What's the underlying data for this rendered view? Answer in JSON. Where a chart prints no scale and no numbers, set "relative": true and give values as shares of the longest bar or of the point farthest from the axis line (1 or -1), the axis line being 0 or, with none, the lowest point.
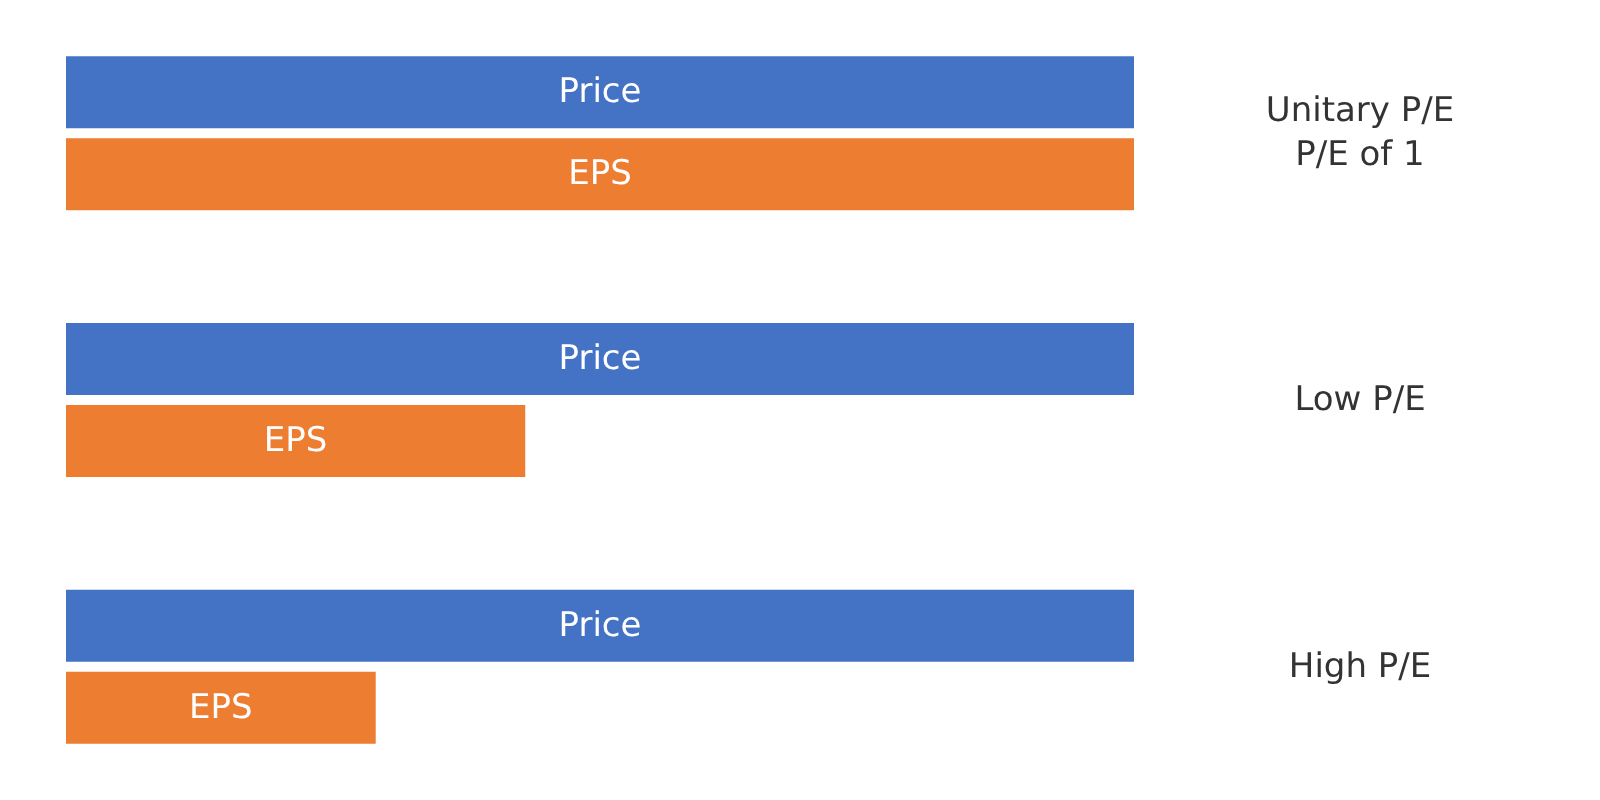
{
  "chart_data": {
    "type": "bar",
    "orientation": "horizontal",
    "relative": true,
    "categories": [
      "Unitary P/E\nP/E of 1",
      "Low P/E",
      "High P/E"
    ],
    "series": [
      {
        "name": "Price",
        "color": "#4472c4",
        "values": [
          1,
          1,
          1
        ]
      },
      {
        "name": "EPS",
        "color": "#ed7d31",
        "values": [
          1,
          0.43,
          0.29
        ]
      }
    ]
  }
}
